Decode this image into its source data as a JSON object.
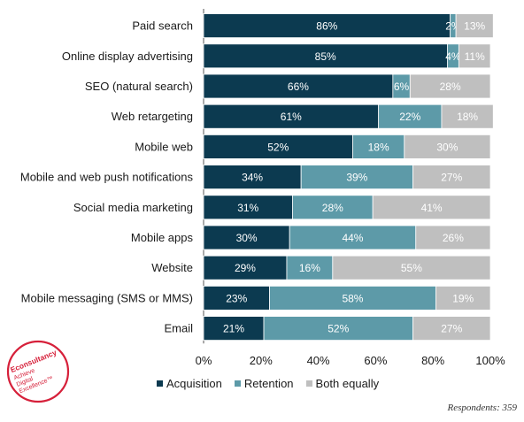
{
  "chart_data": {
    "type": "bar",
    "orientation": "horizontal",
    "stacked": true,
    "categories": [
      "Paid search",
      "Online display advertising",
      "SEO (natural search)",
      "Web retargeting",
      "Mobile web",
      "Mobile and web push notifications",
      "Social media marketing",
      "Mobile apps",
      "Website",
      "Mobile messaging (SMS or MMS)",
      "Email"
    ],
    "series": [
      {
        "name": "Acquisition",
        "color": "#0c3a50",
        "values": [
          86,
          85,
          66,
          61,
          52,
          34,
          31,
          30,
          29,
          23,
          21
        ]
      },
      {
        "name": "Retention",
        "color": "#5d9aa8",
        "values": [
          2,
          4,
          6,
          22,
          18,
          39,
          28,
          44,
          16,
          58,
          52
        ]
      },
      {
        "name": "Both equally",
        "color": "#bfbfbf",
        "values": [
          13,
          11,
          28,
          18,
          30,
          27,
          41,
          26,
          55,
          19,
          27
        ]
      }
    ],
    "value_labels": [
      [
        "86%",
        "2%",
        "13%"
      ],
      [
        "85%",
        "4%",
        "11%"
      ],
      [
        "66%",
        "6%",
        "28%"
      ],
      [
        "61%",
        "22%",
        "18%"
      ],
      [
        "52%",
        "18%",
        "30%"
      ],
      [
        "34%",
        "39%",
        "27%"
      ],
      [
        "31%",
        "28%",
        "41%"
      ],
      [
        "30%",
        "44%",
        "26%"
      ],
      [
        "29%",
        "16%",
        "55%"
      ],
      [
        "23%",
        "58%",
        "19%"
      ],
      [
        "21%",
        "52%",
        "27%"
      ]
    ],
    "xticks": [
      "0%",
      "20%",
      "40%",
      "60%",
      "80%",
      "100%"
    ],
    "xlim": [
      0,
      100
    ],
    "legend_position": "bottom"
  },
  "footnote": "Respondents: 359",
  "logo": {
    "brand": "Econsultancy",
    "tagline_lines": [
      "Achieve",
      "Digital",
      "Excellence™"
    ]
  }
}
